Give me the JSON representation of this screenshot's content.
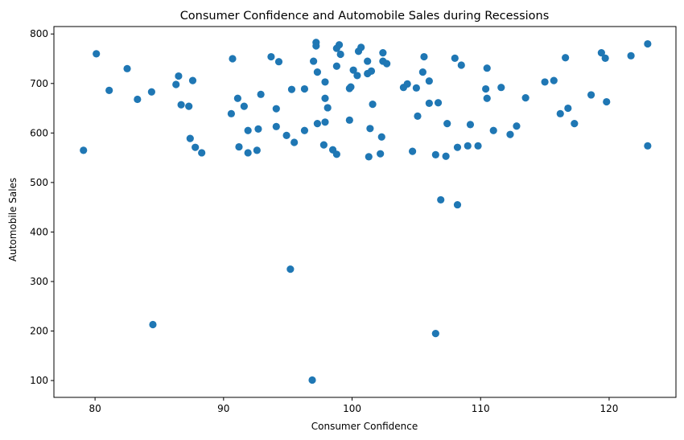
{
  "chart_data": {
    "type": "scatter",
    "title": "Consumer Confidence and Automobile Sales during Recessions",
    "xlabel": "Consumer Confidence",
    "ylabel": "Automobile Sales",
    "xlim": [
      76.8,
      125.2
    ],
    "ylim": [
      66,
      815
    ],
    "xticks": [
      80,
      90,
      100,
      110,
      120
    ],
    "yticks": [
      100,
      200,
      300,
      400,
      500,
      600,
      700,
      800
    ],
    "xtick_labels": [
      "80",
      "90",
      "100",
      "110",
      "120"
    ],
    "ytick_labels": [
      "100",
      "200",
      "300",
      "400",
      "500",
      "600",
      "700",
      "800"
    ],
    "grid": false,
    "marker_color": "#1f77b4",
    "points": [
      {
        "x": 79.1,
        "y": 565
      },
      {
        "x": 80.1,
        "y": 760
      },
      {
        "x": 81.1,
        "y": 686
      },
      {
        "x": 82.5,
        "y": 730
      },
      {
        "x": 83.3,
        "y": 668
      },
      {
        "x": 84.4,
        "y": 683
      },
      {
        "x": 84.5,
        "y": 213
      },
      {
        "x": 86.3,
        "y": 698
      },
      {
        "x": 86.5,
        "y": 715
      },
      {
        "x": 86.7,
        "y": 657
      },
      {
        "x": 87.3,
        "y": 654
      },
      {
        "x": 87.4,
        "y": 589
      },
      {
        "x": 87.6,
        "y": 706
      },
      {
        "x": 87.8,
        "y": 571
      },
      {
        "x": 88.3,
        "y": 560
      },
      {
        "x": 90.6,
        "y": 639
      },
      {
        "x": 90.7,
        "y": 750
      },
      {
        "x": 91.1,
        "y": 670
      },
      {
        "x": 91.2,
        "y": 572
      },
      {
        "x": 91.6,
        "y": 654
      },
      {
        "x": 91.9,
        "y": 605
      },
      {
        "x": 91.9,
        "y": 560
      },
      {
        "x": 92.6,
        "y": 565
      },
      {
        "x": 92.7,
        "y": 608
      },
      {
        "x": 92.9,
        "y": 678
      },
      {
        "x": 93.7,
        "y": 754
      },
      {
        "x": 94.1,
        "y": 613
      },
      {
        "x": 94.1,
        "y": 649
      },
      {
        "x": 94.3,
        "y": 744
      },
      {
        "x": 94.9,
        "y": 595
      },
      {
        "x": 95.2,
        "y": 325
      },
      {
        "x": 95.3,
        "y": 688
      },
      {
        "x": 95.5,
        "y": 581
      },
      {
        "x": 96.3,
        "y": 689
      },
      {
        "x": 96.3,
        "y": 605
      },
      {
        "x": 96.9,
        "y": 101
      },
      {
        "x": 97.0,
        "y": 745
      },
      {
        "x": 97.2,
        "y": 783
      },
      {
        "x": 97.2,
        "y": 776
      },
      {
        "x": 97.3,
        "y": 723
      },
      {
        "x": 97.3,
        "y": 619
      },
      {
        "x": 97.8,
        "y": 576
      },
      {
        "x": 97.9,
        "y": 703
      },
      {
        "x": 97.9,
        "y": 670
      },
      {
        "x": 97.9,
        "y": 622
      },
      {
        "x": 98.1,
        "y": 651
      },
      {
        "x": 98.5,
        "y": 566
      },
      {
        "x": 98.8,
        "y": 735
      },
      {
        "x": 98.8,
        "y": 771
      },
      {
        "x": 98.8,
        "y": 557
      },
      {
        "x": 99.0,
        "y": 778
      },
      {
        "x": 99.1,
        "y": 759
      },
      {
        "x": 99.8,
        "y": 626
      },
      {
        "x": 99.8,
        "y": 690
      },
      {
        "x": 99.9,
        "y": 693
      },
      {
        "x": 100.1,
        "y": 727
      },
      {
        "x": 100.4,
        "y": 716
      },
      {
        "x": 100.5,
        "y": 765
      },
      {
        "x": 100.7,
        "y": 773
      },
      {
        "x": 101.2,
        "y": 745
      },
      {
        "x": 101.2,
        "y": 720
      },
      {
        "x": 101.3,
        "y": 552
      },
      {
        "x": 101.4,
        "y": 609
      },
      {
        "x": 101.5,
        "y": 725
      },
      {
        "x": 101.6,
        "y": 658
      },
      {
        "x": 102.2,
        "y": 558
      },
      {
        "x": 102.3,
        "y": 592
      },
      {
        "x": 102.4,
        "y": 762
      },
      {
        "x": 102.4,
        "y": 745
      },
      {
        "x": 102.7,
        "y": 740
      },
      {
        "x": 104.0,
        "y": 692
      },
      {
        "x": 104.3,
        "y": 699
      },
      {
        "x": 104.7,
        "y": 563
      },
      {
        "x": 105.0,
        "y": 691
      },
      {
        "x": 105.1,
        "y": 634
      },
      {
        "x": 105.5,
        "y": 723
      },
      {
        "x": 105.6,
        "y": 754
      },
      {
        "x": 106.0,
        "y": 705
      },
      {
        "x": 106.0,
        "y": 660
      },
      {
        "x": 106.5,
        "y": 556
      },
      {
        "x": 106.5,
        "y": 195
      },
      {
        "x": 106.7,
        "y": 661
      },
      {
        "x": 106.9,
        "y": 465
      },
      {
        "x": 107.3,
        "y": 553
      },
      {
        "x": 107.4,
        "y": 619
      },
      {
        "x": 108.0,
        "y": 751
      },
      {
        "x": 108.2,
        "y": 571
      },
      {
        "x": 108.2,
        "y": 455
      },
      {
        "x": 108.5,
        "y": 737
      },
      {
        "x": 109.0,
        "y": 574
      },
      {
        "x": 109.2,
        "y": 617
      },
      {
        "x": 109.8,
        "y": 574
      },
      {
        "x": 110.4,
        "y": 689
      },
      {
        "x": 110.5,
        "y": 731
      },
      {
        "x": 110.5,
        "y": 670
      },
      {
        "x": 111.0,
        "y": 605
      },
      {
        "x": 111.6,
        "y": 692
      },
      {
        "x": 112.3,
        "y": 597
      },
      {
        "x": 112.8,
        "y": 614
      },
      {
        "x": 113.5,
        "y": 671
      },
      {
        "x": 115.0,
        "y": 703
      },
      {
        "x": 115.7,
        "y": 706
      },
      {
        "x": 116.2,
        "y": 639
      },
      {
        "x": 116.6,
        "y": 752
      },
      {
        "x": 116.8,
        "y": 650
      },
      {
        "x": 117.3,
        "y": 619
      },
      {
        "x": 118.6,
        "y": 677
      },
      {
        "x": 119.4,
        "y": 762
      },
      {
        "x": 119.7,
        "y": 751
      },
      {
        "x": 119.8,
        "y": 663
      },
      {
        "x": 121.7,
        "y": 756
      },
      {
        "x": 123.0,
        "y": 780
      },
      {
        "x": 123.0,
        "y": 574
      }
    ]
  }
}
